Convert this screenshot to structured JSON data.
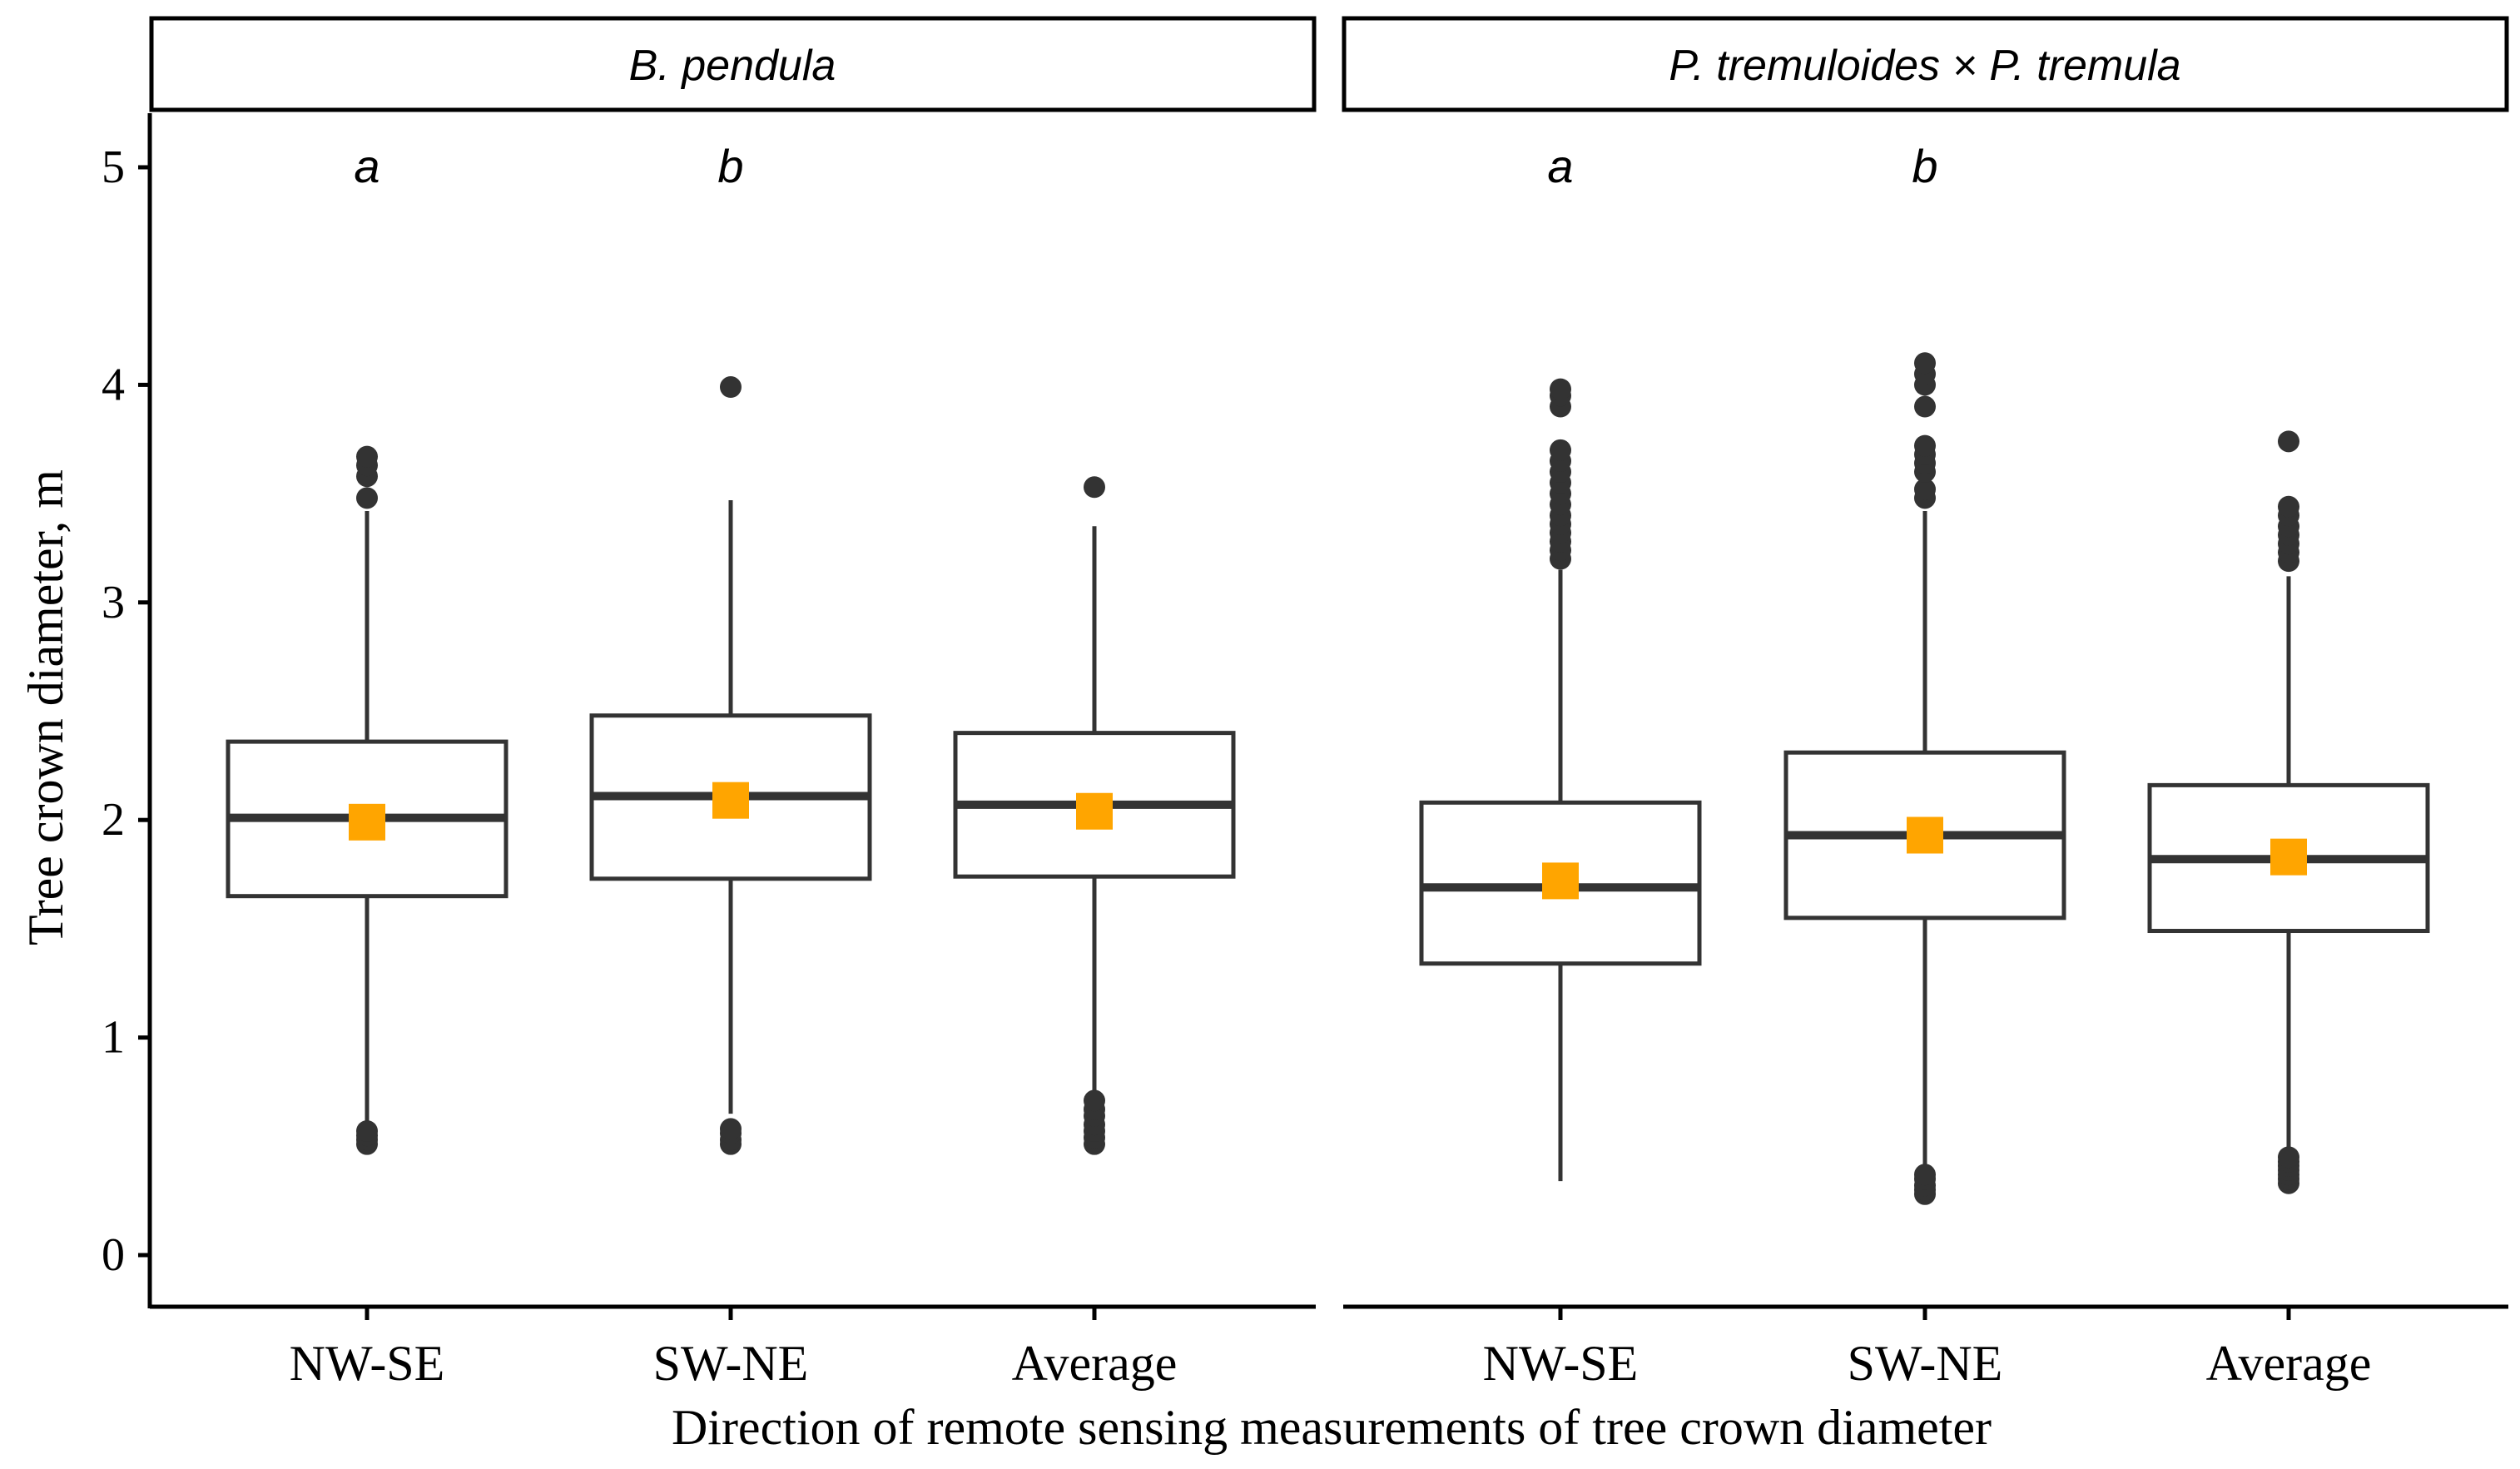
{
  "chart_data": {
    "type": "boxplot",
    "xlabel": "Direction of remote sensing measurements of tree crown diameter",
    "ylabel": "Tree crown diameter, m",
    "ylim": [
      -0.25,
      5.25
    ],
    "yticks": [
      0,
      1,
      2,
      3,
      4,
      5
    ],
    "categories": [
      "NW-SE",
      "SW-NE",
      "Average"
    ],
    "colors": {
      "box_line": "#333333",
      "mean_marker": "#FFA500",
      "axis": "#000000",
      "background": "#ffffff"
    },
    "panels": [
      {
        "title": "B. pendula",
        "groups": [
          {
            "category": "NW-SE",
            "letter": "a",
            "whisker_low": 0.6,
            "q1": 1.65,
            "median": 2.01,
            "q3": 2.36,
            "whisker_high": 3.42,
            "mean": 1.99,
            "outliers": [
              0.51,
              0.53,
              0.55,
              0.57,
              3.48,
              3.58,
              3.63,
              3.67
            ]
          },
          {
            "category": "SW-NE",
            "letter": "b",
            "whisker_low": 0.65,
            "q1": 1.73,
            "median": 2.11,
            "q3": 2.48,
            "whisker_high": 3.47,
            "mean": 2.09,
            "outliers": [
              0.51,
              0.53,
              0.56,
              0.58,
              3.99
            ]
          },
          {
            "category": "Average",
            "letter": "",
            "whisker_low": 0.73,
            "q1": 1.74,
            "median": 2.07,
            "q3": 2.4,
            "whisker_high": 3.35,
            "mean": 2.04,
            "outliers": [
              0.51,
              0.54,
              0.57,
              0.6,
              0.64,
              0.67,
              0.71,
              3.53
            ]
          }
        ]
      },
      {
        "title": "P. tremuloides × P. tremula",
        "groups": [
          {
            "category": "NW-SE",
            "letter": "a",
            "whisker_low": 0.34,
            "q1": 1.34,
            "median": 1.69,
            "q3": 2.08,
            "whisker_high": 3.15,
            "mean": 1.72,
            "outliers": [
              3.2,
              3.24,
              3.28,
              3.32,
              3.36,
              3.4,
              3.45,
              3.5,
              3.55,
              3.6,
              3.65,
              3.7,
              3.9,
              3.95,
              3.98
            ]
          },
          {
            "category": "SW-NE",
            "letter": "b",
            "whisker_low": 0.4,
            "q1": 1.55,
            "median": 1.93,
            "q3": 2.31,
            "whisker_high": 3.42,
            "mean": 1.93,
            "outliers": [
              0.28,
              0.3,
              0.32,
              0.35,
              0.37,
              3.48,
              3.52,
              3.6,
              3.64,
              3.68,
              3.72,
              3.9,
              4.0,
              4.05,
              4.1
            ]
          },
          {
            "category": "Average",
            "letter": "",
            "whisker_low": 0.46,
            "q1": 1.49,
            "median": 1.82,
            "q3": 2.16,
            "whisker_high": 3.12,
            "mean": 1.83,
            "outliers": [
              0.33,
              0.35,
              0.37,
              0.39,
              0.41,
              0.43,
              0.45,
              3.19,
              3.23,
              3.27,
              3.31,
              3.35,
              3.4,
              3.44,
              3.74
            ]
          }
        ]
      }
    ]
  }
}
